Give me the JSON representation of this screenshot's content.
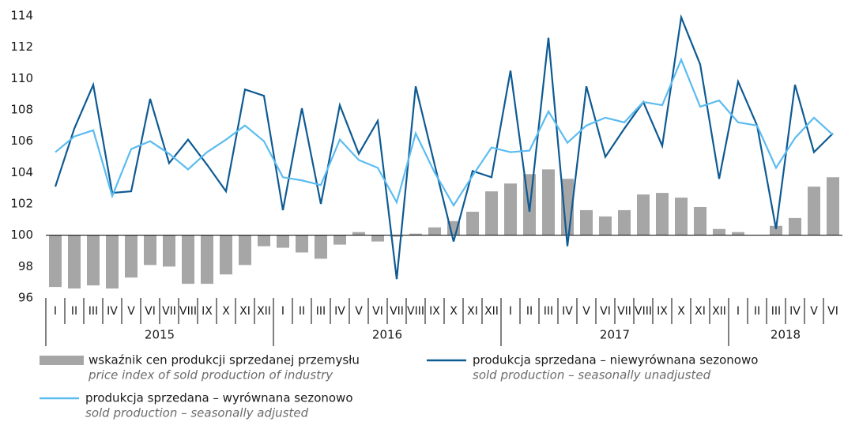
{
  "chart_data": {
    "type": "bar_line",
    "categories": [
      "I",
      "II",
      "III",
      "IV",
      "V",
      "VI",
      "VII",
      "VIII",
      "IX",
      "X",
      "XI",
      "XII",
      "I",
      "II",
      "III",
      "IV",
      "V",
      "VI",
      "VII",
      "VIII",
      "IX",
      "X",
      "XI",
      "XII",
      "I",
      "II",
      "III",
      "IV",
      "V",
      "VI",
      "VII",
      "VIII",
      "IX",
      "X",
      "XI",
      "XII",
      "I",
      "II",
      "III",
      "IV",
      "V",
      "VI"
    ],
    "years": [
      "2015",
      "2016",
      "2017",
      "2018"
    ],
    "ylim": [
      96,
      114
    ],
    "yticks": [
      96,
      98,
      100,
      102,
      104,
      106,
      108,
      110,
      112,
      114
    ],
    "baseline": 100,
    "series": [
      {
        "name": "wskaźnik cen produkcji sprzedanej przemysłu",
        "name_en": "price index of sold production of industry",
        "kind": "bar",
        "color": "#a6a6a6",
        "values": [
          96.7,
          96.6,
          96.8,
          96.6,
          97.3,
          98.1,
          98.0,
          96.9,
          96.9,
          97.5,
          98.1,
          99.3,
          99.2,
          98.9,
          98.5,
          99.4,
          100.2,
          99.6,
          99.9,
          100.1,
          100.5,
          100.9,
          101.5,
          102.8,
          103.3,
          103.9,
          104.2,
          103.6,
          101.6,
          101.2,
          101.6,
          102.6,
          102.7,
          102.4,
          101.8,
          100.4,
          100.2,
          100.0,
          100.6,
          101.1,
          103.1,
          103.7
        ]
      },
      {
        "name": "produkcja sprzedana – niewyrównana sezonowo",
        "name_en": "sold production – seasonally unadjusted",
        "kind": "line",
        "color": "#0e5a93",
        "values": [
          103.1,
          106.8,
          109.6,
          102.7,
          102.8,
          108.7,
          104.6,
          106.1,
          104.5,
          102.8,
          109.3,
          108.9,
          101.6,
          108.1,
          102.0,
          108.3,
          105.2,
          107.3,
          97.2,
          109.5,
          104.5,
          99.6,
          104.1,
          103.7,
          110.5,
          101.5,
          112.6,
          99.3,
          109.5,
          105.0,
          106.8,
          108.5,
          105.7,
          113.9,
          110.9,
          103.6,
          109.8,
          107.0,
          100.4,
          109.6,
          105.3,
          106.5
        ]
      },
      {
        "name": "produkcja sprzedana – wyrównana sezonowo",
        "name_en": "sold production – seasonally adjusted",
        "kind": "line",
        "color": "#5bbcf0",
        "values": [
          105.3,
          106.3,
          106.7,
          102.5,
          105.5,
          106.0,
          105.2,
          104.2,
          105.3,
          106.1,
          107.0,
          106.0,
          103.7,
          103.5,
          103.2,
          106.1,
          104.8,
          104.3,
          102.1,
          106.5,
          104.0,
          101.9,
          103.8,
          105.6,
          105.3,
          105.4,
          107.9,
          105.9,
          107.0,
          107.5,
          107.2,
          108.5,
          108.3,
          111.2,
          108.2,
          108.6,
          107.2,
          107.0,
          104.3,
          106.2,
          107.5,
          106.4
        ]
      }
    ]
  }
}
